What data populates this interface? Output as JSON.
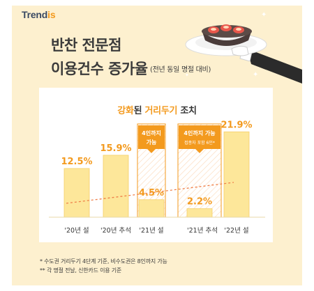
{
  "brand": {
    "name_main": "Trend",
    "name_accent": "is"
  },
  "header": {
    "title_line1": "반찬 전문점",
    "title_line2": "이용건수 증가율",
    "subtitle": "(전년 동일 명절 대비)"
  },
  "annotation": {
    "title_accent1": "강화",
    "title_mid": "된 ",
    "title_accent2": "거리두기",
    "title_end": " 조치",
    "box1_line1": "4인까지",
    "box1_line2": "가능",
    "box2_line1": "4인까지 가능",
    "box2_line2": "접종자 포함 6인*"
  },
  "chart_data": {
    "type": "bar",
    "categories": [
      "'20년 설",
      "'20년 추석",
      "'21년 설",
      "'21년 추석",
      "'22년 설"
    ],
    "values": [
      12.5,
      15.9,
      4.5,
      2.2,
      21.9
    ],
    "value_labels": [
      "12.5%",
      "15.9%",
      "4.5%",
      "2.2%",
      "21.9%"
    ],
    "ylim": [
      0,
      25
    ],
    "trendline": "dashed",
    "colors": {
      "bar": "#fde79a",
      "bar_edge": "#f6cf6a",
      "value": "#f39a1e",
      "trend": "#ef7f49",
      "highlight": "#f39a1e"
    }
  },
  "footnotes": {
    "note1": "* 수도권 거리두기 4단계 기준, 비수도권은 8인까지 가능",
    "note2": "** 각 명절 전날, 신한카드 이용 기준"
  }
}
